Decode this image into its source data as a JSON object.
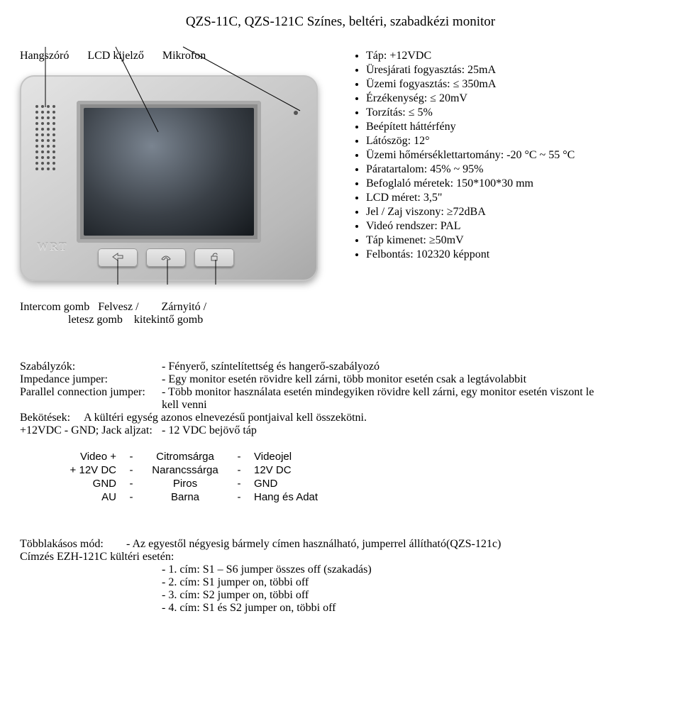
{
  "title": "QZS-11C, QZS-121C Színes, beltéri, szabadkézi monitor",
  "topLabels": {
    "speaker": "Hangszóró",
    "lcd": "LCD kijelző",
    "mic": "Mikrofon"
  },
  "brand": "WRT",
  "bottomLabels": "Intercom gomb   Felvesz /        Zárnyitó /\n                 letesz gomb    kitekintő gomb",
  "specs": [
    "Táp: +12VDC",
    "Üresjárati fogyasztás: 25mA",
    "Üzemi fogyasztás: ≤ 350mA",
    "Érzékenység: ≤ 20mV",
    "Torzítás: ≤ 5%",
    "Beépített háttérfény",
    "Látószög: 12°",
    "Üzemi hőmérséklettartomány: -20 °C ~ 55 °C",
    "Páratartalom: 45% ~ 95%",
    "Befoglaló méretek: 150*100*30 mm",
    "LCD méret: 3,5\"",
    "Jel / Zaj viszony: ≥72dBA",
    "Videó rendszer: PAL",
    "Táp kimenet: ≥50mV",
    "Felbontás: 102320 képpont"
  ],
  "controls": {
    "rows": [
      {
        "lbl": "Szabályzók:",
        "val": "- Fényerő, színtelítettség és hangerő-szabályozó"
      },
      {
        "lbl": "Impedance jumper:",
        "val": "- Egy monitor esetén rövidre kell zárni, több monitor esetén csak a legtávolabbit"
      },
      {
        "lbl": "Parallel connection jumper:",
        "val": "- Több monitor használata esetén mindegyiken rövidre kell zárni, egy monitor esetén viszont le"
      }
    ],
    "cont": "kell venni",
    "bekotesLbl": "Bekötések:",
    "bekotesVal": "A kültéri egység azonos elnevezésű pontjaival kell összekötni.",
    "jackLbl": "+12VDC - GND; Jack aljzat:",
    "jackVal": "- 12 VDC bejövő táp"
  },
  "wiring": [
    [
      "Video +",
      "-",
      "Citromsárga",
      "-",
      "Videojel"
    ],
    [
      "+ 12V DC",
      "-",
      "Narancssárga",
      "-",
      "12V DC"
    ],
    [
      "GND",
      "-",
      "Piros",
      "-",
      "GND"
    ],
    [
      "AU",
      "-",
      "Barna",
      "-",
      "Hang és Adat"
    ]
  ],
  "multi": {
    "lbl": "Többlakásos mód:",
    "val": "- Az egyestől négyesig bármely címen használható, jumperrel állítható(QZS-121c)",
    "sub": "Címzés EZH-121C kültéri esetén:",
    "items": [
      "1. cím: S1 – S6 jumper összes off (szakadás)",
      "2. cím: S1 jumper on, többi off",
      "3. cím: S2 jumper on, többi off",
      "4. cím: S1 és S2 jumper on, többi off"
    ]
  }
}
